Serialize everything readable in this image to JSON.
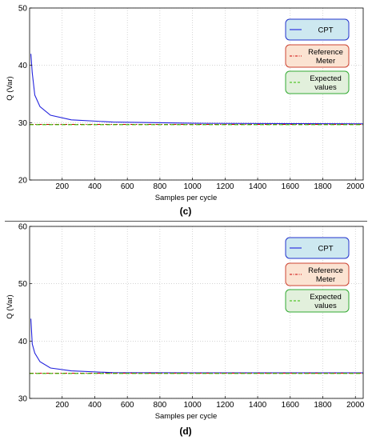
{
  "chart_data": [
    {
      "type": "line",
      "caption": "(c)",
      "xlabel": "Samples per cycle",
      "ylabel": "Q (Var)",
      "xlim": [
        0,
        2048
      ],
      "ylim": [
        20,
        50
      ],
      "xticks": [
        200,
        400,
        600,
        800,
        1000,
        1200,
        1400,
        1600,
        1800,
        2000
      ],
      "yticks": [
        20,
        30,
        40,
        50
      ],
      "grid": true,
      "legend_position": "top-right",
      "series": [
        {
          "name": "CPT",
          "color": "#2222dd",
          "style": "solid",
          "x": [
            8,
            16,
            32,
            64,
            128,
            256,
            512,
            1024,
            2048
          ],
          "y": [
            42.0,
            38.7,
            34.8,
            32.8,
            31.3,
            30.5,
            30.1,
            29.9,
            29.8
          ]
        },
        {
          "name": "Reference\nMeter",
          "color": "#cc0000",
          "style": "dashdot",
          "x": [
            0,
            2048
          ],
          "y": [
            29.7,
            29.7
          ]
        },
        {
          "name": "Expected\nvalues",
          "color": "#33bb00",
          "style": "dashed",
          "x": [
            0,
            2048
          ],
          "y": [
            29.65,
            29.65
          ]
        }
      ],
      "legend_styles": [
        {
          "fill": "#cde8f0",
          "stroke": "#2233cc"
        },
        {
          "fill": "#fbe3d2",
          "stroke": "#cc4433"
        },
        {
          "fill": "#e2f0dc",
          "stroke": "#33aa33"
        }
      ]
    },
    {
      "type": "line",
      "caption": "(d)",
      "xlabel": "Samples per cycle",
      "ylabel": "Q (Var)",
      "xlim": [
        0,
        2048
      ],
      "ylim": [
        30,
        60
      ],
      "xticks": [
        200,
        400,
        600,
        800,
        1000,
        1200,
        1400,
        1600,
        1800,
        2000
      ],
      "yticks": [
        30,
        40,
        50,
        60
      ],
      "grid": true,
      "legend_position": "top-right",
      "series": [
        {
          "name": "CPT",
          "color": "#2222dd",
          "style": "solid",
          "x": [
            8,
            16,
            32,
            64,
            128,
            256,
            512,
            1024,
            2048
          ],
          "y": [
            43.9,
            39.5,
            37.9,
            36.4,
            35.3,
            34.8,
            34.5,
            34.45,
            34.45
          ]
        },
        {
          "name": "Reference\nMeter",
          "color": "#cc0000",
          "style": "dashdot",
          "x": [
            0,
            2048
          ],
          "y": [
            34.4,
            34.4
          ]
        },
        {
          "name": "Expected\nvalues",
          "color": "#33bb00",
          "style": "dashed",
          "x": [
            0,
            2048
          ],
          "y": [
            34.35,
            34.35
          ]
        }
      ],
      "legend_styles": [
        {
          "fill": "#cde8f0",
          "stroke": "#2233cc"
        },
        {
          "fill": "#fbe3d2",
          "stroke": "#cc4433"
        },
        {
          "fill": "#e2f0dc",
          "stroke": "#33aa33"
        }
      ]
    }
  ]
}
